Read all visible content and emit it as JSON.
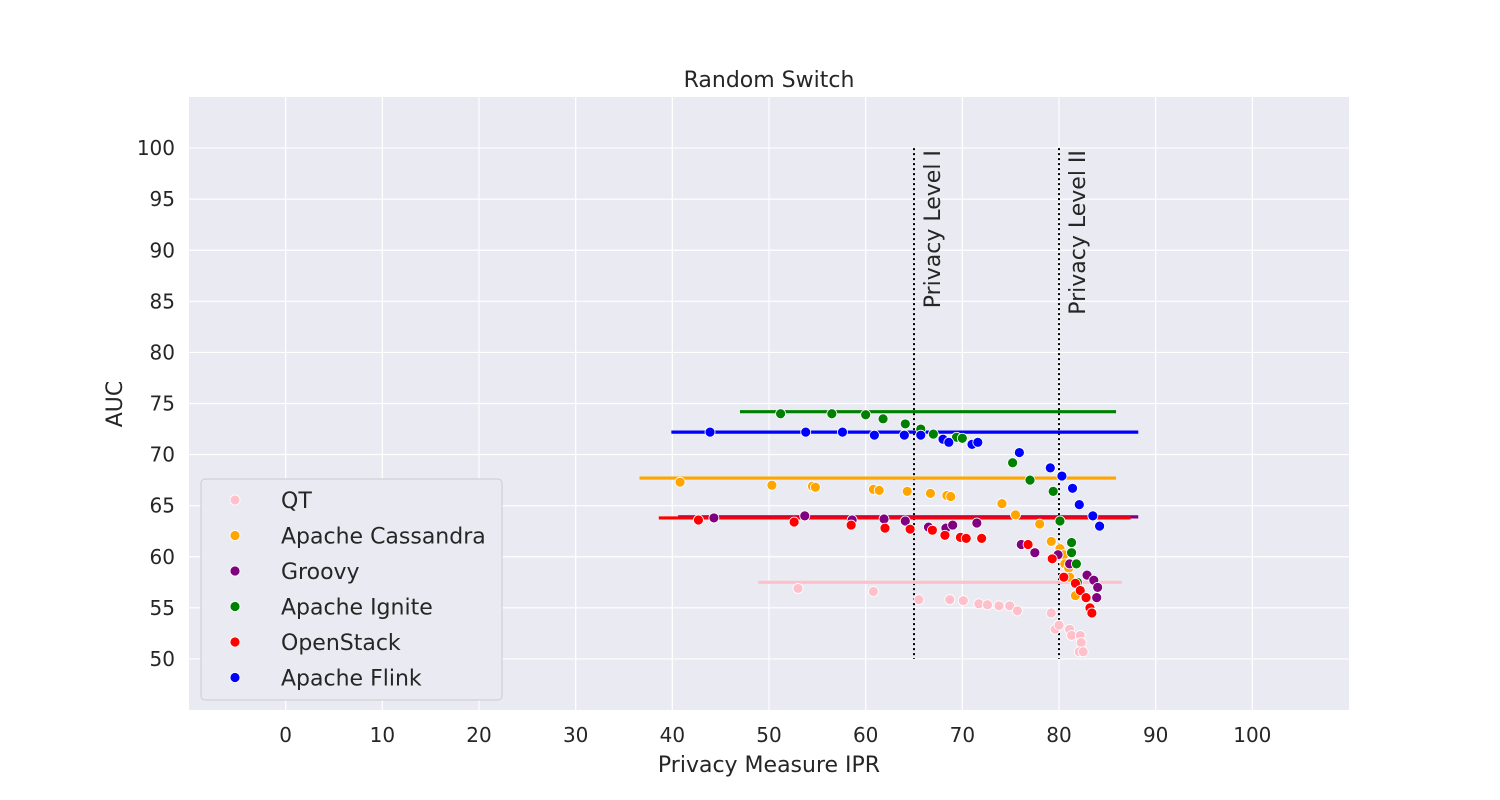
{
  "chart_data": {
    "type": "scatter",
    "title": "Random Switch",
    "xlabel": "Privacy Measure IPR",
    "ylabel": "AUC",
    "xlim": [
      -10,
      110
    ],
    "ylim": [
      45,
      105
    ],
    "xticks": [
      0,
      10,
      20,
      30,
      40,
      50,
      60,
      70,
      80,
      90,
      100
    ],
    "yticks": [
      50,
      55,
      60,
      65,
      70,
      75,
      80,
      85,
      90,
      95,
      100
    ],
    "grid": true,
    "legend_position": "lower-left",
    "reference_lines": [
      {
        "label": "Privacy Level I",
        "x": 65,
        "y_range": [
          50,
          100
        ],
        "style": "dotted"
      },
      {
        "label": "Privacy Level II",
        "x": 80,
        "y_range": [
          50,
          100
        ],
        "style": "dotted"
      }
    ],
    "series": [
      {
        "name": "QT",
        "color": "#ffc0cb",
        "baseline": {
          "y": 57.5,
          "x_range": [
            48.9,
            86.5
          ]
        },
        "points": [
          [
            53.0,
            56.9
          ],
          [
            60.8,
            56.6
          ],
          [
            65.5,
            55.8
          ],
          [
            68.7,
            55.8
          ],
          [
            70.1,
            55.7
          ],
          [
            71.7,
            55.4
          ],
          [
            72.6,
            55.3
          ],
          [
            73.8,
            55.2
          ],
          [
            74.9,
            55.2
          ],
          [
            75.7,
            54.7
          ],
          [
            79.2,
            54.5
          ],
          [
            79.6,
            52.9
          ],
          [
            80.0,
            53.3
          ],
          [
            81.1,
            52.9
          ],
          [
            81.3,
            52.3
          ],
          [
            82.2,
            52.3
          ],
          [
            82.3,
            51.6
          ],
          [
            82.1,
            50.7
          ],
          [
            82.5,
            50.7
          ]
        ]
      },
      {
        "name": "Apache Cassandra",
        "color": "#ffa500",
        "baseline": {
          "y": 67.7,
          "x_range": [
            36.6,
            85.9
          ]
        },
        "points": [
          [
            40.8,
            67.3
          ],
          [
            50.3,
            67.0
          ],
          [
            54.5,
            66.9
          ],
          [
            54.8,
            66.8
          ],
          [
            60.8,
            66.6
          ],
          [
            61.4,
            66.5
          ],
          [
            64.3,
            66.4
          ],
          [
            66.7,
            66.2
          ],
          [
            68.4,
            66.0
          ],
          [
            68.8,
            65.9
          ],
          [
            74.1,
            65.2
          ],
          [
            75.5,
            64.1
          ],
          [
            78.0,
            63.2
          ],
          [
            79.2,
            61.5
          ],
          [
            80.1,
            60.8
          ],
          [
            80.5,
            60.2
          ],
          [
            80.6,
            59.3
          ],
          [
            81.0,
            58.9
          ],
          [
            81.1,
            58.0
          ],
          [
            81.7,
            56.2
          ]
        ]
      },
      {
        "name": "Groovy",
        "color": "#800080",
        "baseline": {
          "y": 63.9,
          "x_range": [
            40.6,
            88.2
          ]
        },
        "points": [
          [
            44.3,
            63.8
          ],
          [
            53.7,
            64.0
          ],
          [
            58.6,
            63.6
          ],
          [
            61.9,
            63.7
          ],
          [
            64.1,
            63.5
          ],
          [
            66.5,
            62.9
          ],
          [
            68.3,
            62.8
          ],
          [
            69.0,
            63.1
          ],
          [
            71.5,
            63.3
          ],
          [
            76.1,
            61.2
          ],
          [
            77.5,
            60.4
          ],
          [
            79.9,
            60.2
          ],
          [
            81.1,
            59.3
          ],
          [
            82.9,
            58.2
          ],
          [
            83.6,
            57.7
          ],
          [
            84.0,
            57.0
          ],
          [
            83.9,
            56.0
          ]
        ]
      },
      {
        "name": "Apache Ignite",
        "color": "#008000",
        "baseline": {
          "y": 74.2,
          "x_range": [
            47.0,
            85.9
          ]
        },
        "points": [
          [
            51.2,
            74.0
          ],
          [
            56.5,
            74.0
          ],
          [
            60.0,
            73.9
          ],
          [
            61.8,
            73.5
          ],
          [
            64.1,
            73.0
          ],
          [
            65.7,
            72.5
          ],
          [
            67.0,
            72.0
          ],
          [
            69.4,
            71.7
          ],
          [
            70.0,
            71.6
          ],
          [
            75.2,
            69.2
          ],
          [
            77.0,
            67.5
          ],
          [
            79.4,
            66.4
          ],
          [
            80.1,
            63.5
          ],
          [
            81.3,
            61.4
          ],
          [
            81.3,
            60.4
          ],
          [
            81.8,
            59.3
          ],
          [
            81.9,
            57.5
          ]
        ]
      },
      {
        "name": "OpenStack",
        "color": "#ff0000",
        "baseline": {
          "y": 63.8,
          "x_range": [
            38.6,
            87.4
          ]
        },
        "points": [
          [
            42.7,
            63.6
          ],
          [
            52.6,
            63.4
          ],
          [
            58.5,
            63.1
          ],
          [
            62.0,
            62.8
          ],
          [
            64.6,
            62.7
          ],
          [
            66.9,
            62.6
          ],
          [
            68.2,
            62.1
          ],
          [
            69.8,
            61.9
          ],
          [
            70.4,
            61.8
          ],
          [
            72.0,
            61.8
          ],
          [
            76.8,
            61.2
          ],
          [
            79.3,
            59.8
          ],
          [
            80.5,
            58.0
          ],
          [
            81.7,
            57.4
          ],
          [
            82.2,
            56.7
          ],
          [
            82.8,
            56.0
          ],
          [
            83.2,
            55.0
          ],
          [
            83.4,
            54.5
          ]
        ]
      },
      {
        "name": "Apache Flink",
        "color": "#0000ff",
        "baseline": {
          "y": 72.2,
          "x_range": [
            39.9,
            88.2
          ]
        },
        "points": [
          [
            43.9,
            72.2
          ],
          [
            53.8,
            72.2
          ],
          [
            57.6,
            72.2
          ],
          [
            60.9,
            71.9
          ],
          [
            64.0,
            71.9
          ],
          [
            65.7,
            71.9
          ],
          [
            68.0,
            71.5
          ],
          [
            68.6,
            71.2
          ],
          [
            71.0,
            71.0
          ],
          [
            71.6,
            71.2
          ],
          [
            75.9,
            70.2
          ],
          [
            79.1,
            68.7
          ],
          [
            80.3,
            67.9
          ],
          [
            81.4,
            66.7
          ],
          [
            82.1,
            65.1
          ],
          [
            83.5,
            64.0
          ],
          [
            84.2,
            63.0
          ]
        ]
      }
    ]
  }
}
